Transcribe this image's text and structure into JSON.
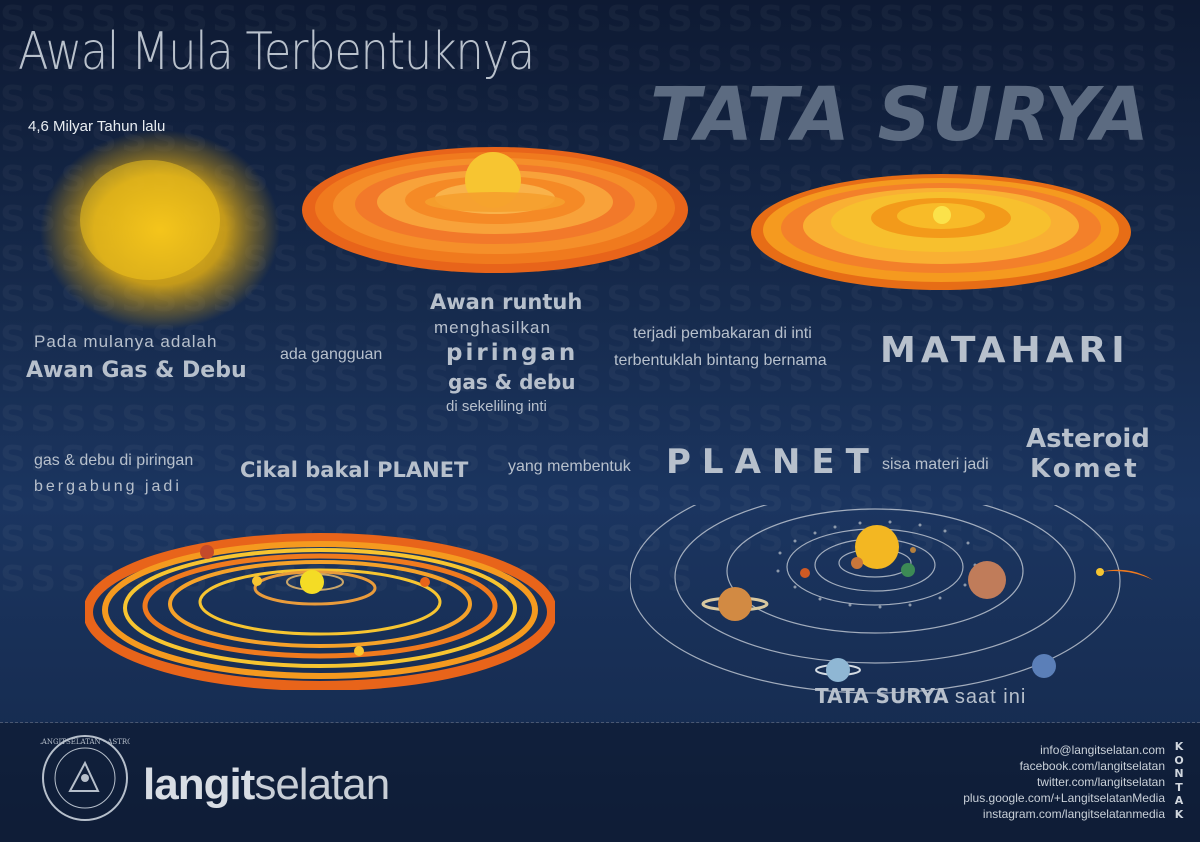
{
  "title": {
    "line1": "Awal Mula Terbentuknya",
    "line2": "TATA SURYA",
    "subtitle": "4,6 Milyar Tahun lalu"
  },
  "stage1": {
    "line1": "Pada mulanya adalah",
    "line2": "Awan Gas & Debu"
  },
  "stage2": {
    "text": "ada gangguan"
  },
  "stage3": {
    "line1": "Awan runtuh",
    "line2": "menghasilkan",
    "line3": "piringan",
    "line4": "gas & debu",
    "line5": "di sekeliling inti"
  },
  "stage4": {
    "line1": "terjadi pembakaran di inti",
    "line2": "terbentuklah bintang bernama",
    "highlight": "MATAHARI"
  },
  "stage5": {
    "line1": "gas & debu di piringan",
    "line2": "bergabung jadi",
    "highlight": "Cikal bakal PLANET"
  },
  "stage6": {
    "text": "yang membentuk",
    "highlight": "PLANET"
  },
  "stage7": {
    "text": "sisa materi jadi",
    "line1": "Asteroid",
    "line2": "Komet"
  },
  "result": {
    "bold": "TATA SURYA",
    "rest": "saat ini"
  },
  "footer": {
    "logo_bold": "langit",
    "logo_light": "selatan",
    "seal_text": "LANGITSELATAN · ASTRO",
    "contacts": [
      "info@langitselatan.com",
      "facebook.com/langitselatan",
      "twitter.com/langitselatan",
      "plus.google.com/+LangitselatanMedia",
      "instagram.com/langitselatanmedia"
    ],
    "kontak": "KONTAK"
  },
  "colors": {
    "background": "#162a4c",
    "disk_orange": "#f07a1e",
    "disk_yellow": "#f7c531",
    "text_grey": "#b7c0cc"
  },
  "icons": [
    "gas-cloud",
    "collapsing-disk",
    "sun-disk",
    "planet-disk",
    "solar-system",
    "comet",
    "seal-logo"
  ]
}
